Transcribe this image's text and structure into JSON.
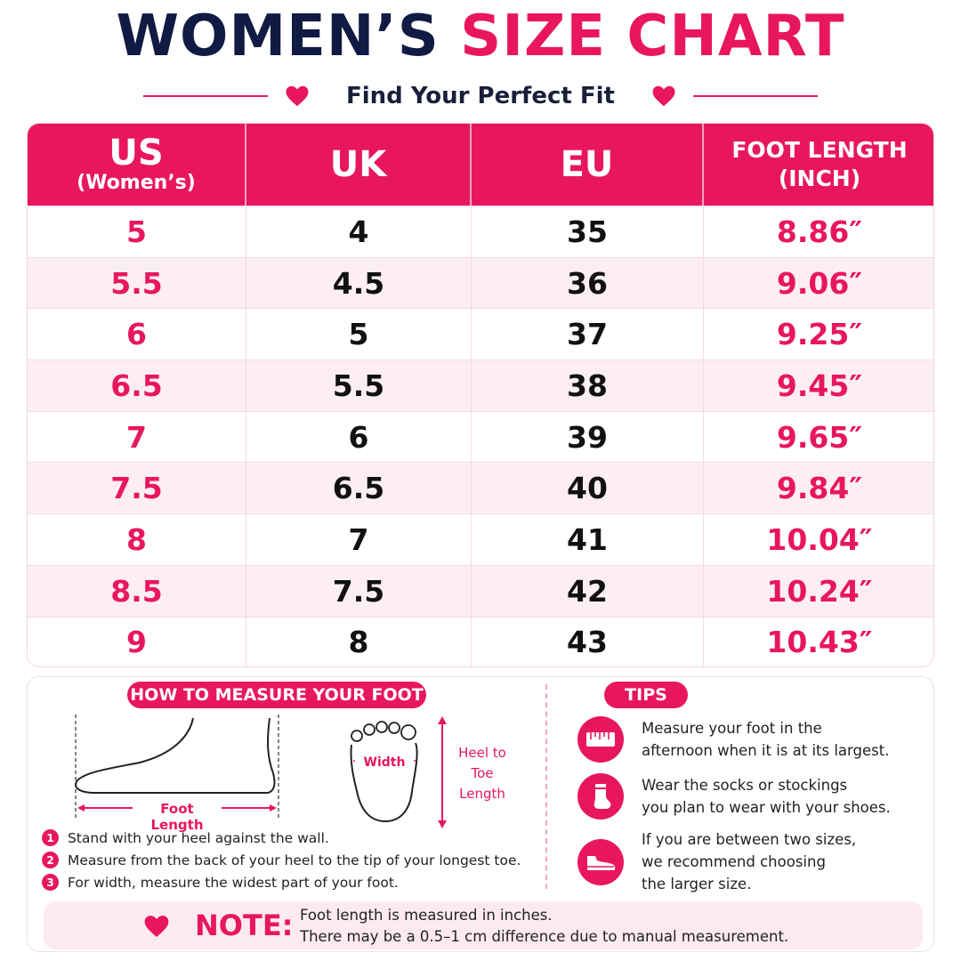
{
  "header": {
    "title_part1": "WOMEN’S",
    "title_part2": "SIZE CHART",
    "subtitle": "Find Your Perfect Fit"
  },
  "table": {
    "columns": [
      {
        "main": "US",
        "sub": "(Women’s)"
      },
      {
        "main": "UK"
      },
      {
        "main": "EU"
      },
      {
        "line1": "FOOT LENGTH",
        "line2": "(INCH)"
      }
    ],
    "rows": [
      {
        "us": "5",
        "uk": "4",
        "eu": "35",
        "foot": "8.86″"
      },
      {
        "us": "5.5",
        "uk": "4.5",
        "eu": "36",
        "foot": "9.06″"
      },
      {
        "us": "6",
        "uk": "5",
        "eu": "37",
        "foot": "9.25″"
      },
      {
        "us": "6.5",
        "uk": "5.5",
        "eu": "38",
        "foot": "9.45″"
      },
      {
        "us": "7",
        "uk": "6",
        "eu": "39",
        "foot": "9.65″"
      },
      {
        "us": "7.5",
        "uk": "6.5",
        "eu": "40",
        "foot": "9.84″"
      },
      {
        "us": "8",
        "uk": "7",
        "eu": "41",
        "foot": "10.04″"
      },
      {
        "us": "8.5",
        "uk": "7.5",
        "eu": "42",
        "foot": "10.24″"
      },
      {
        "us": "9",
        "uk": "8",
        "eu": "43",
        "foot": "10.43″"
      }
    ]
  },
  "measure": {
    "heading": "HOW TO MEASURE YOUR FOOT",
    "foot_length_label": "Foot Length",
    "width_label": "Width",
    "heel_to_toe_label": [
      "Heel to",
      "Toe",
      "Length"
    ],
    "steps": [
      {
        "num": "1",
        "text": "Stand with your heel against the wall."
      },
      {
        "num": "2",
        "text": "Measure from the back of your heel to the tip of your longest toe."
      },
      {
        "num": "3",
        "text": "For width, measure the widest part of your foot."
      }
    ]
  },
  "tips": {
    "heading": "TIPS",
    "items": [
      {
        "icon": "ruler-icon",
        "line1": "Measure your foot in the",
        "line2": "afternoon when it is at its largest."
      },
      {
        "icon": "sock-icon",
        "line1": "Wear the socks or stockings",
        "line2": "you plan to wear with your shoes."
      },
      {
        "icon": "shoe-icon",
        "line1": "If you are between two sizes,",
        "line2": "we recommend choosing",
        "line3": "the larger size."
      }
    ]
  },
  "note": {
    "label": "NOTE:",
    "line1": "Foot length is measured in inches.",
    "line2": "There may be a 0.5–1 cm difference due to manual measurement."
  },
  "colors": {
    "accent": "#e8175d",
    "navy": "#101a43",
    "row_alt": "#fdeef2"
  }
}
